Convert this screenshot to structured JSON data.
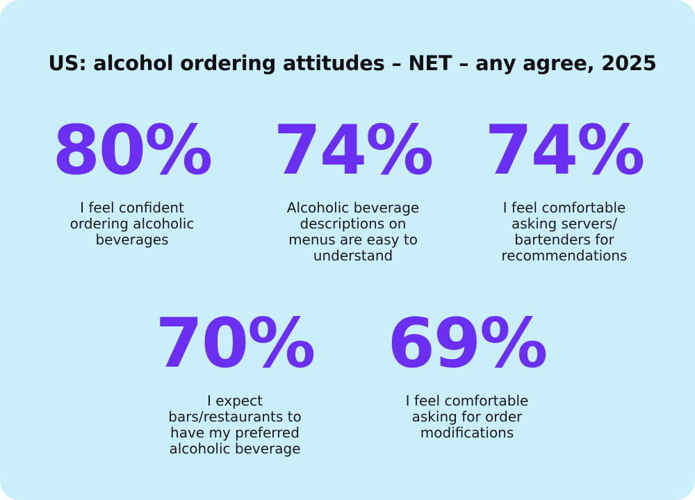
{
  "title": "US: alcohol ordering attitudes – NET – any agree, 2025",
  "stats": [
    {
      "value": "80%",
      "label_lines": [
        "I feel confident",
        "ordering alcoholic",
        "beverages"
      ]
    },
    {
      "value": "74%",
      "label_lines": [
        "Alcoholic beverage",
        "descriptions on",
        "menus are easy to",
        "understand"
      ]
    },
    {
      "value": "74%",
      "label_lines": [
        "I feel comfortable",
        "asking servers/",
        "bartenders for",
        "recommendations"
      ]
    },
    {
      "value": "70%",
      "label_lines": [
        "I expect",
        "bars/restaurants to",
        "have my preferred",
        "alcoholic beverage"
      ]
    },
    {
      "value": "69%",
      "label_lines": [
        "I feel comfortable",
        "asking for order",
        "modifications"
      ]
    }
  ]
}
